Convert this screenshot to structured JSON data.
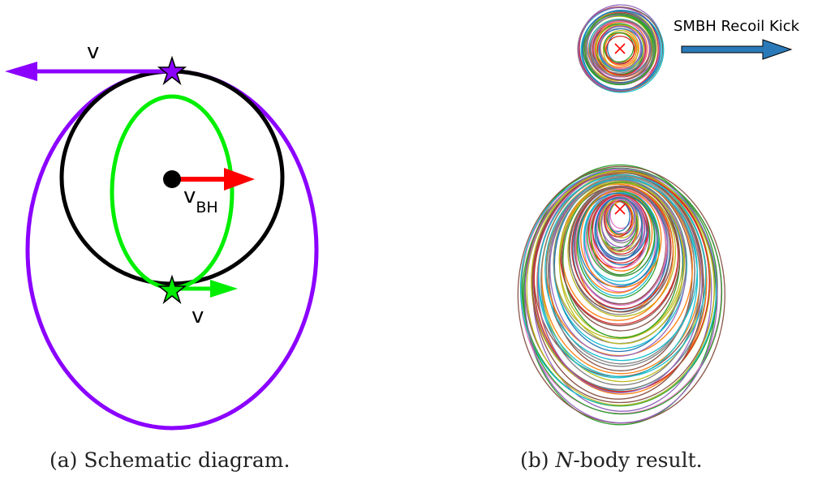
{
  "panel_a": {
    "caption_prefix": "(a)",
    "caption_text": "Schematic diagram.",
    "label_v_top": "v",
    "label_v_bottom": "v",
    "label_vbh_main": "v",
    "label_vbh_sub": "BH",
    "colors": {
      "purple": "#8b00ff",
      "green": "#00ee00",
      "black": "#000000",
      "red": "#ff0000"
    }
  },
  "panel_b": {
    "caption_prefix": "(b)",
    "caption_italic": "N",
    "caption_text": "-body result.",
    "kick_label": "SMBH Recoil Kick",
    "kick_arrow_color": "#2a7ab9",
    "bh_marker_color": "#ff0000",
    "orbit_palette": [
      "#1f77b4",
      "#ff7f0e",
      "#2ca02c",
      "#d62728",
      "#9467bd",
      "#8c564b",
      "#e377c2",
      "#7f7f7f",
      "#bcbd22",
      "#17becf"
    ]
  }
}
